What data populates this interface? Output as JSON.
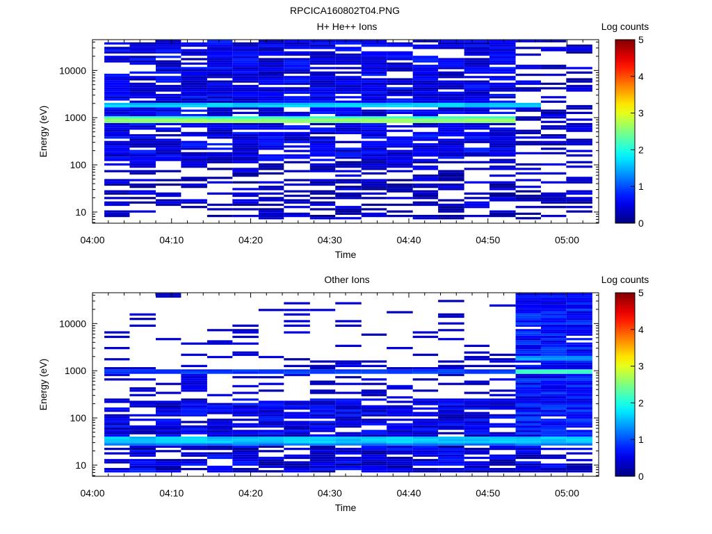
{
  "figure_title": "RPCICA160802T04.PNG",
  "colors": {
    "background": "#ffffff",
    "axis": "#000000",
    "empty_bin": "#ffffff"
  },
  "chart_data": [
    {
      "type": "heatmap",
      "title": "H+ He++ Ions",
      "xlabel": "Time",
      "ylabel": "Energy (eV)",
      "colorbar_label": "Log counts",
      "colorbar_ticks": [
        "0",
        "1",
        "2",
        "3",
        "4",
        "5"
      ],
      "colorbar_range": [
        0,
        5
      ],
      "x_ticks": [
        "04:00",
        "04:10",
        "04:20",
        "04:30",
        "04:40",
        "04:50",
        "05:00"
      ],
      "x_range_minutes": [
        0,
        64
      ],
      "y_ticks": [
        "10",
        "100",
        "1000",
        "10000"
      ],
      "y_scale": "log",
      "y_range": [
        5.8,
        45000
      ],
      "time_bin_edges_minutes": [
        1.5,
        4.7,
        8.0,
        11.2,
        14.5,
        17.7,
        21.0,
        24.2,
        27.5,
        30.7,
        34.0,
        37.2,
        40.5,
        43.7,
        47.0,
        50.2,
        53.5,
        56.7,
        59.9,
        63.2
      ],
      "channel_count": 80,
      "channel_energy_range_eV": [
        7,
        44000
      ],
      "features": [
        {
          "kind": "band",
          "energy": 930,
          "width": 0.07,
          "level": 2.6,
          "cols": [
            0,
            16
          ]
        },
        {
          "kind": "band",
          "energy": 1000,
          "width": 0.03,
          "level": 2.1,
          "cols": [
            0,
            16
          ]
        },
        {
          "kind": "band",
          "energy": 1850,
          "width": 0.06,
          "level": 1.6,
          "cols": [
            0,
            17
          ]
        }
      ],
      "regions": [
        {
          "cols": [
            0,
            16
          ],
          "emin": 7,
          "emax": 44000,
          "fill": 0.78,
          "min": 0.2,
          "max": 0.8
        },
        {
          "cols": [
            16,
            19
          ],
          "emin": 7,
          "emax": 44000,
          "fill": 0.38,
          "min": 0.1,
          "max": 0.6
        },
        {
          "cols": [
            0,
            19
          ],
          "emin": 7,
          "emax": 120,
          "fill": 0.5,
          "min": 0.05,
          "max": 0.6
        }
      ]
    },
    {
      "type": "heatmap",
      "title": "Other Ions",
      "xlabel": "Time",
      "ylabel": "Energy (eV)",
      "colorbar_label": "Log counts",
      "colorbar_ticks": [
        "0",
        "1",
        "2",
        "3",
        "4",
        "5"
      ],
      "colorbar_range": [
        0,
        5
      ],
      "x_ticks": [
        "04:00",
        "04:10",
        "04:20",
        "04:30",
        "04:40",
        "04:50",
        "05:00"
      ],
      "x_range_minutes": [
        0,
        64
      ],
      "y_ticks": [
        "10",
        "100",
        "1000",
        "10000"
      ],
      "y_scale": "log",
      "y_range": [
        5.8,
        45000
      ],
      "time_bin_edges_minutes": [
        1.5,
        4.7,
        8.0,
        11.2,
        14.5,
        17.7,
        21.0,
        24.2,
        27.5,
        30.7,
        34.0,
        37.2,
        40.5,
        43.7,
        47.0,
        50.2,
        53.5,
        56.7,
        59.9,
        63.2
      ],
      "channel_count": 80,
      "channel_energy_range_eV": [
        7,
        44000
      ],
      "features": [
        {
          "kind": "band",
          "energy": 33,
          "width": 0.07,
          "level": 1.6,
          "cols": [
            0,
            19
          ]
        },
        {
          "kind": "band",
          "energy": 27,
          "width": 0.03,
          "level": 1.2,
          "cols": [
            0,
            19
          ]
        },
        {
          "kind": "band",
          "energy": 950,
          "width": 0.04,
          "level": 0.9,
          "cols": [
            0,
            16
          ]
        },
        {
          "kind": "band",
          "energy": 950,
          "width": 0.05,
          "level": 2.1,
          "cols": [
            16,
            19
          ]
        },
        {
          "kind": "band",
          "energy": 1900,
          "width": 0.04,
          "level": 1.4,
          "cols": [
            16,
            19
          ]
        }
      ],
      "regions": [
        {
          "cols": [
            0,
            16
          ],
          "emin": 2000,
          "emax": 44000,
          "fill": 0.13,
          "min": 0.2,
          "max": 0.5
        },
        {
          "cols": [
            0,
            16
          ],
          "emin": 250,
          "emax": 2000,
          "fill": 0.35,
          "min": 0.2,
          "max": 0.6
        },
        {
          "cols": [
            0,
            16
          ],
          "emin": 40,
          "emax": 250,
          "fill": 0.8,
          "min": 0.2,
          "max": 0.8
        },
        {
          "cols": [
            0,
            19
          ],
          "emin": 7,
          "emax": 25,
          "fill": 0.8,
          "min": 0.1,
          "max": 0.8
        },
        {
          "cols": [
            16,
            19
          ],
          "emin": 25,
          "emax": 44000,
          "fill": 0.96,
          "min": 0.4,
          "max": 1.0
        }
      ]
    }
  ]
}
